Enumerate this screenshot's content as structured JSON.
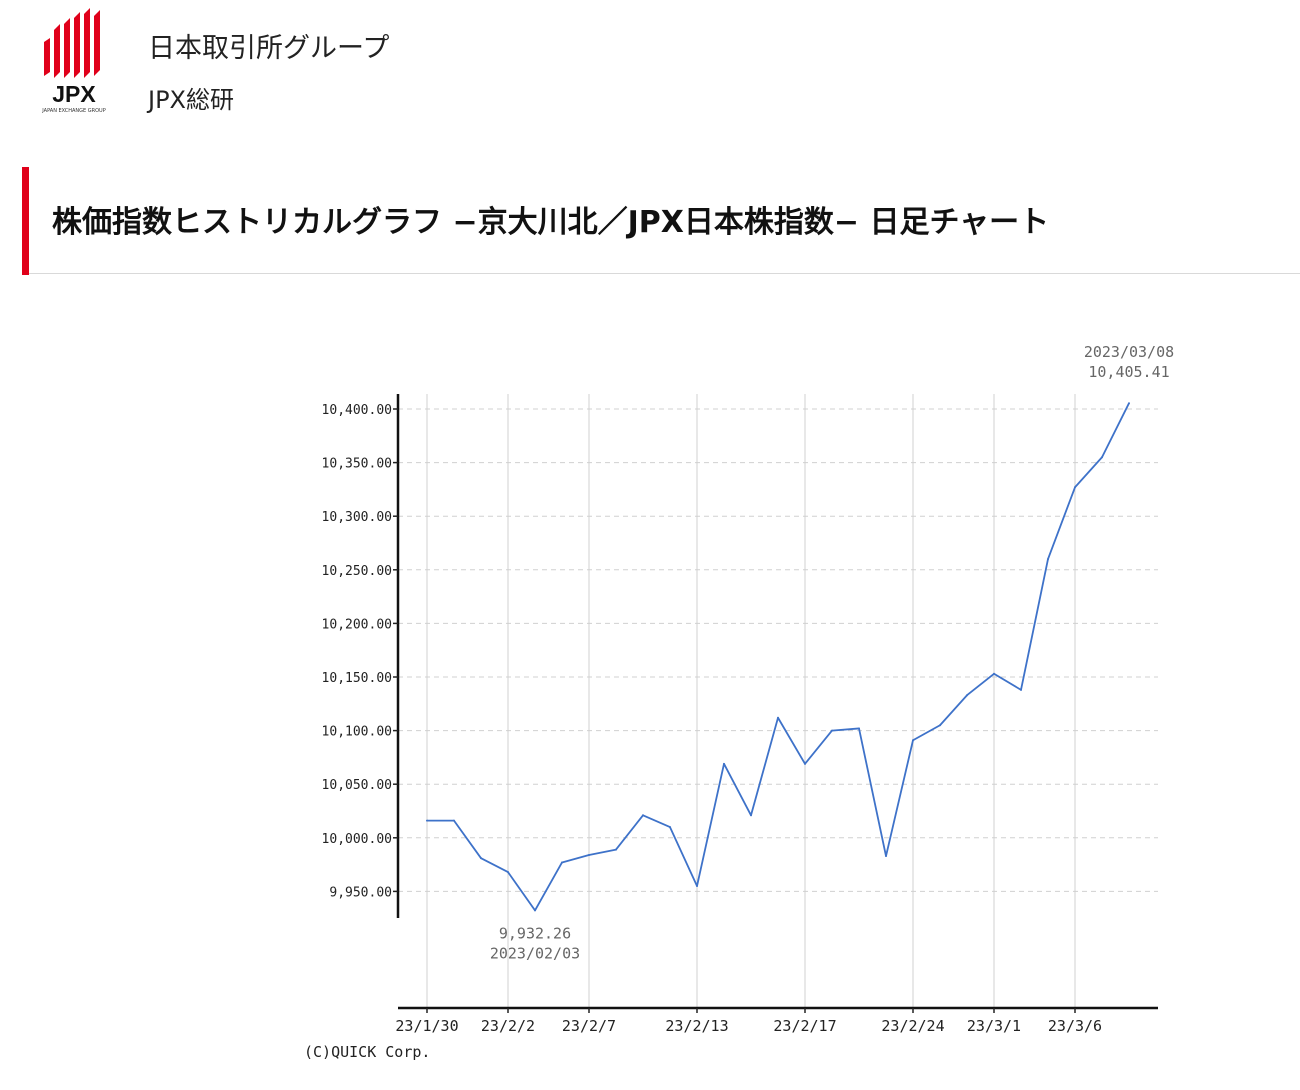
{
  "header": {
    "logo_text": "JPX",
    "logo_subtext": "JAPAN EXCHANGE GROUP",
    "org_name": "日本取引所グループ",
    "org_sub": "JPX総研"
  },
  "page_title": "株価指数ヒストリカルグラフ −京大川北／JPX日本株指数− 日足チャート",
  "colors": {
    "brand_red": "#e0001a",
    "line": "#3e72c9",
    "grid": "#d0d0d0"
  },
  "chart_data": {
    "type": "line",
    "title": "",
    "xlabel": "",
    "ylabel": "",
    "ylim": [
      9925,
      10415
    ],
    "yticks": [
      9950,
      10000,
      10050,
      10100,
      10150,
      10200,
      10250,
      10300,
      10350,
      10400
    ],
    "ytick_labels": [
      "9,950.00",
      "10,000.00",
      "10,050.00",
      "10,100.00",
      "10,150.00",
      "10,200.00",
      "10,250.00",
      "10,300.00",
      "10,350.00",
      "10,400.00"
    ],
    "xtick_labels": [
      {
        "label": "23/1/30",
        "index": 0
      },
      {
        "label": "23/2/2",
        "index": 3
      },
      {
        "label": "23/2/7",
        "index": 6
      },
      {
        "label": "23/2/13",
        "index": 10
      },
      {
        "label": "23/2/17",
        "index": 14
      },
      {
        "label": "23/2/24",
        "index": 18
      },
      {
        "label": "23/3/1",
        "index": 21
      },
      {
        "label": "23/3/6",
        "index": 24
      }
    ],
    "series": [
      {
        "values": [
          10016,
          10016,
          9981,
          9968,
          9932.26,
          9977,
          9984,
          9989,
          10021,
          10010,
          9955,
          10069,
          10021,
          10112,
          10069,
          10100,
          10102,
          9983,
          10091,
          10105,
          10133,
          10153,
          10138,
          10260,
          10327,
          10355,
          10405.41
        ]
      }
    ],
    "grid": true,
    "annotations": [
      {
        "point_index": 26,
        "date": "2023/03/08",
        "value": "10,405.41",
        "position": "above"
      },
      {
        "point_index": 4,
        "date": "2023/02/03",
        "value": "9,932.26",
        "position": "below"
      }
    ]
  },
  "credit": "(C)QUICK Corp."
}
